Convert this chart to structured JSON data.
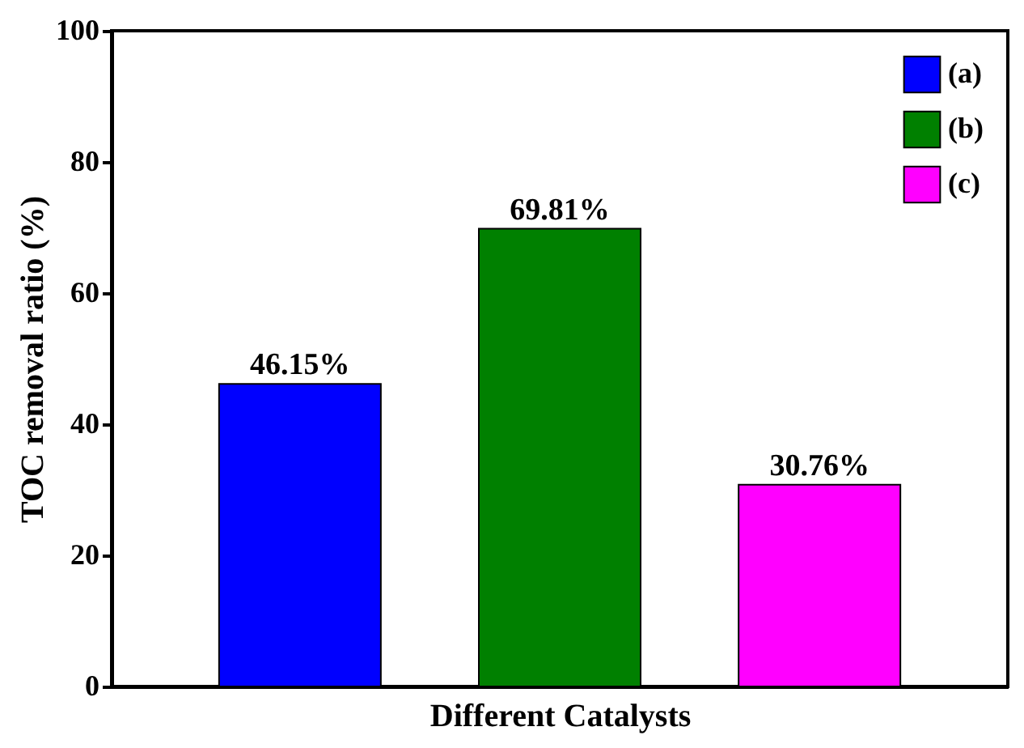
{
  "chart_data": {
    "type": "bar",
    "xlabel": "Different Catalysts",
    "ylabel": "TOC removal ratio (%)",
    "categories": [
      null,
      null,
      null
    ],
    "series": [
      {
        "name": "(a)",
        "color": "#0000ff",
        "values": [
          46.15,
          null,
          null
        ],
        "value_labels": [
          "46.15%",
          null,
          null
        ]
      },
      {
        "name": "(b)",
        "color": "#008000",
        "values": [
          null,
          69.81,
          null
        ],
        "value_labels": [
          null,
          "69.81%",
          null
        ]
      },
      {
        "name": "(c)",
        "color": "#ff00ff",
        "values": [
          null,
          null,
          30.76
        ],
        "value_labels": [
          null,
          null,
          "30.76%"
        ]
      }
    ],
    "ylim": [
      0,
      100
    ],
    "yticks": [
      0,
      20,
      40,
      60,
      80,
      100
    ],
    "grid": false,
    "legend": "top right",
    "tick_labels": "y"
  }
}
